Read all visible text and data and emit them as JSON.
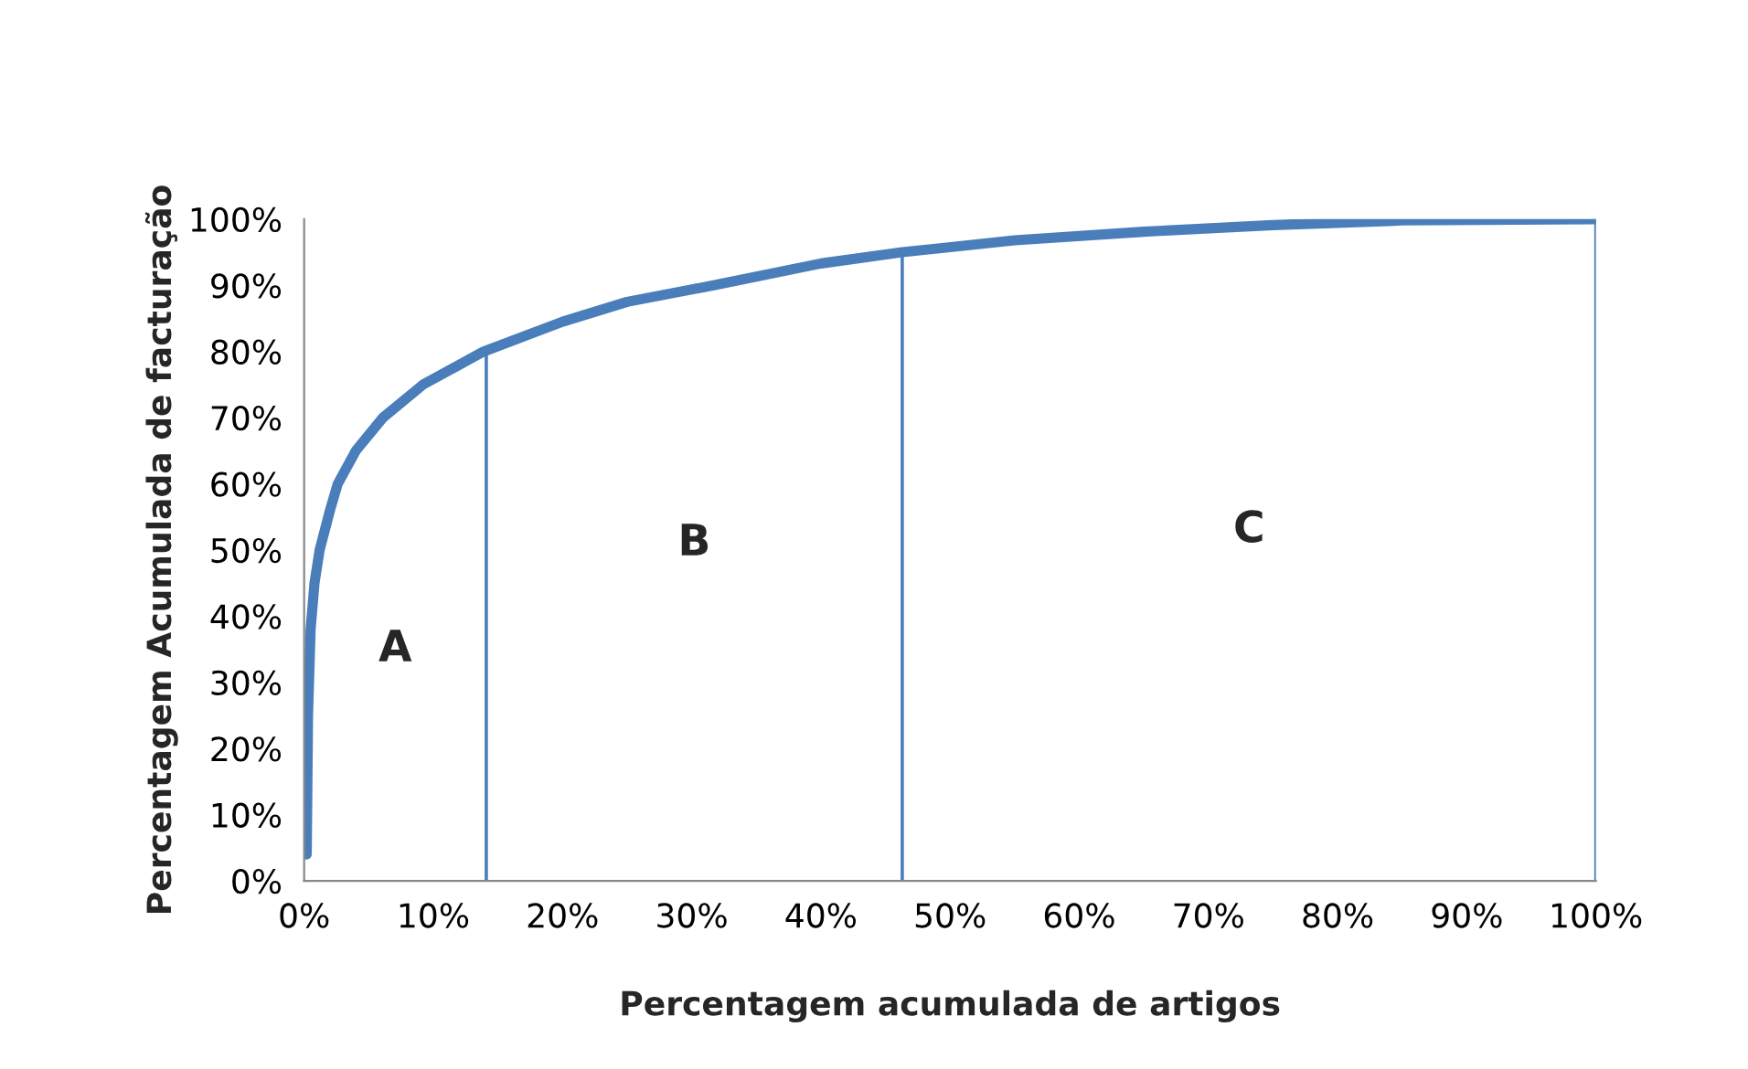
{
  "chart_data": {
    "type": "line",
    "xlabel": "Percentagem acumulada de artigos",
    "ylabel": "Percentagem Acumulada de facturação",
    "x": [
      0.2,
      0.3,
      0.5,
      0.8,
      1.2,
      2,
      2.6,
      4,
      6.1,
      9.2,
      13.9,
      20,
      25,
      31.7,
      40,
      46.3,
      55,
      65,
      75,
      85,
      100
    ],
    "series": [
      {
        "color": "#4a7ebb",
        "values": [
          4,
          25,
          38,
          45,
          50,
          56,
          60,
          65,
          70,
          75,
          80,
          84.5,
          87.5,
          90,
          93.3,
          95,
          96.8,
          98.1,
          99.1,
          99.8,
          100
        ]
      }
    ],
    "xlim": [
      0,
      100
    ],
    "ylim": [
      0,
      100
    ],
    "xticks": [
      {
        "value": 0,
        "label": "0%"
      },
      {
        "value": 10,
        "label": "10%"
      },
      {
        "value": 20,
        "label": "20%"
      },
      {
        "value": 30,
        "label": "30%"
      },
      {
        "value": 40,
        "label": "40%"
      },
      {
        "value": 50,
        "label": "50%"
      },
      {
        "value": 60,
        "label": "60%"
      },
      {
        "value": 70,
        "label": "70%"
      },
      {
        "value": 80,
        "label": "80%"
      },
      {
        "value": 90,
        "label": "90%"
      },
      {
        "value": 100,
        "label": "100%"
      }
    ],
    "yticks": [
      {
        "value": 0,
        "label": "0%"
      },
      {
        "value": 10,
        "label": "10%"
      },
      {
        "value": 20,
        "label": "20%"
      },
      {
        "value": 30,
        "label": "30%"
      },
      {
        "value": 40,
        "label": "40%"
      },
      {
        "value": 50,
        "label": "50%"
      },
      {
        "value": 60,
        "label": "60%"
      },
      {
        "value": 70,
        "label": "70%"
      },
      {
        "value": 80,
        "label": "80%"
      },
      {
        "value": 90,
        "label": "90%"
      },
      {
        "value": 100,
        "label": "100%"
      }
    ],
    "ref_lines": [
      {
        "axis": "x",
        "value": 14.1,
        "color": "#4a7ebb"
      },
      {
        "axis": "x",
        "value": 46.3,
        "color": "#4a7ebb"
      },
      {
        "axis": "x",
        "value": 100,
        "color": "#4a7ebb"
      }
    ],
    "annotations": [
      "A",
      "B",
      "C"
    ],
    "grid": false,
    "legend": false,
    "marker": "none",
    "line_style": "solid"
  }
}
